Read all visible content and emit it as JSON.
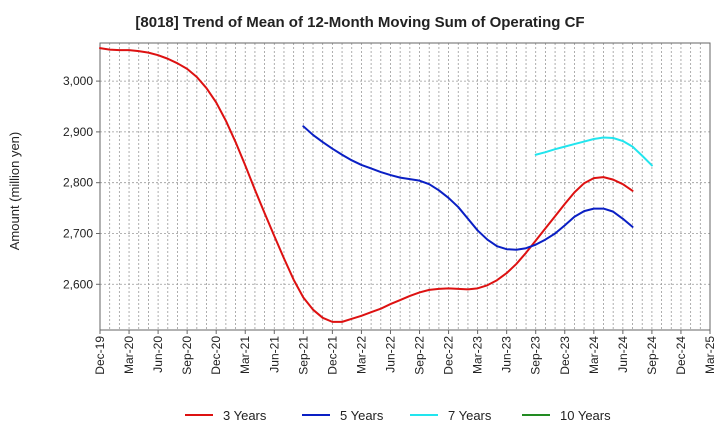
{
  "chart_data": {
    "type": "line",
    "title": "[8018]  Trend of Mean of 12-Month Moving Sum of Operating CF",
    "xlabel": "",
    "ylabel": "Amount (million yen)",
    "ylim": [
      2510,
      3075
    ],
    "yticks": [
      2600,
      2700,
      2800,
      2900,
      3000
    ],
    "ytick_labels": [
      "2,600",
      "2,700",
      "2,800",
      "2,900",
      "3,000"
    ],
    "x_start": "Dec-19",
    "x_end": "Mar-25",
    "x_tick_labels": [
      "Dec-19",
      "Mar-20",
      "Jun-20",
      "Sep-20",
      "Dec-20",
      "Mar-21",
      "Jun-21",
      "Sep-21",
      "Dec-21",
      "Mar-22",
      "Jun-22",
      "Sep-22",
      "Dec-22",
      "Mar-23",
      "Jun-23",
      "Sep-23",
      "Dec-23",
      "Mar-24",
      "Jun-24",
      "Sep-24",
      "Dec-24",
      "Mar-25"
    ],
    "grid": true,
    "legend_position": "bottom",
    "series": [
      {
        "name": "3 Years",
        "color": "#dd1111",
        "start_index": 0,
        "values": [
          3065,
          3062,
          3061,
          3061,
          3059,
          3056,
          3051,
          3044,
          3035,
          3024,
          3008,
          2986,
          2958,
          2922,
          2880,
          2834,
          2786,
          2740,
          2695,
          2651,
          2609,
          2574,
          2550,
          2534,
          2526,
          2526,
          2532,
          2538,
          2545,
          2552,
          2561,
          2569,
          2577,
          2584,
          2589,
          2591,
          2592,
          2591,
          2590,
          2592,
          2598,
          2608,
          2622,
          2640,
          2662,
          2686,
          2710,
          2734,
          2758,
          2781,
          2799,
          2809,
          2811,
          2806,
          2797,
          2784
        ]
      },
      {
        "name": "5 Years",
        "color": "#0a1fc4",
        "start_index": 21,
        "values": [
          2911,
          2894,
          2880,
          2867,
          2855,
          2844,
          2835,
          2828,
          2821,
          2815,
          2810,
          2807,
          2804,
          2797,
          2785,
          2770,
          2752,
          2729,
          2706,
          2688,
          2675,
          2669,
          2668,
          2671,
          2678,
          2688,
          2700,
          2716,
          2733,
          2744,
          2749,
          2749,
          2743,
          2729,
          2713
        ]
      },
      {
        "name": "7 Years",
        "color": "#22e5ee",
        "start_index": 45,
        "values": [
          2855,
          2860,
          2866,
          2871,
          2876,
          2881,
          2886,
          2889,
          2888,
          2882,
          2871,
          2853,
          2834
        ]
      },
      {
        "name": "10 Years",
        "color": "#228b22",
        "start_index": 0,
        "values": []
      }
    ]
  }
}
